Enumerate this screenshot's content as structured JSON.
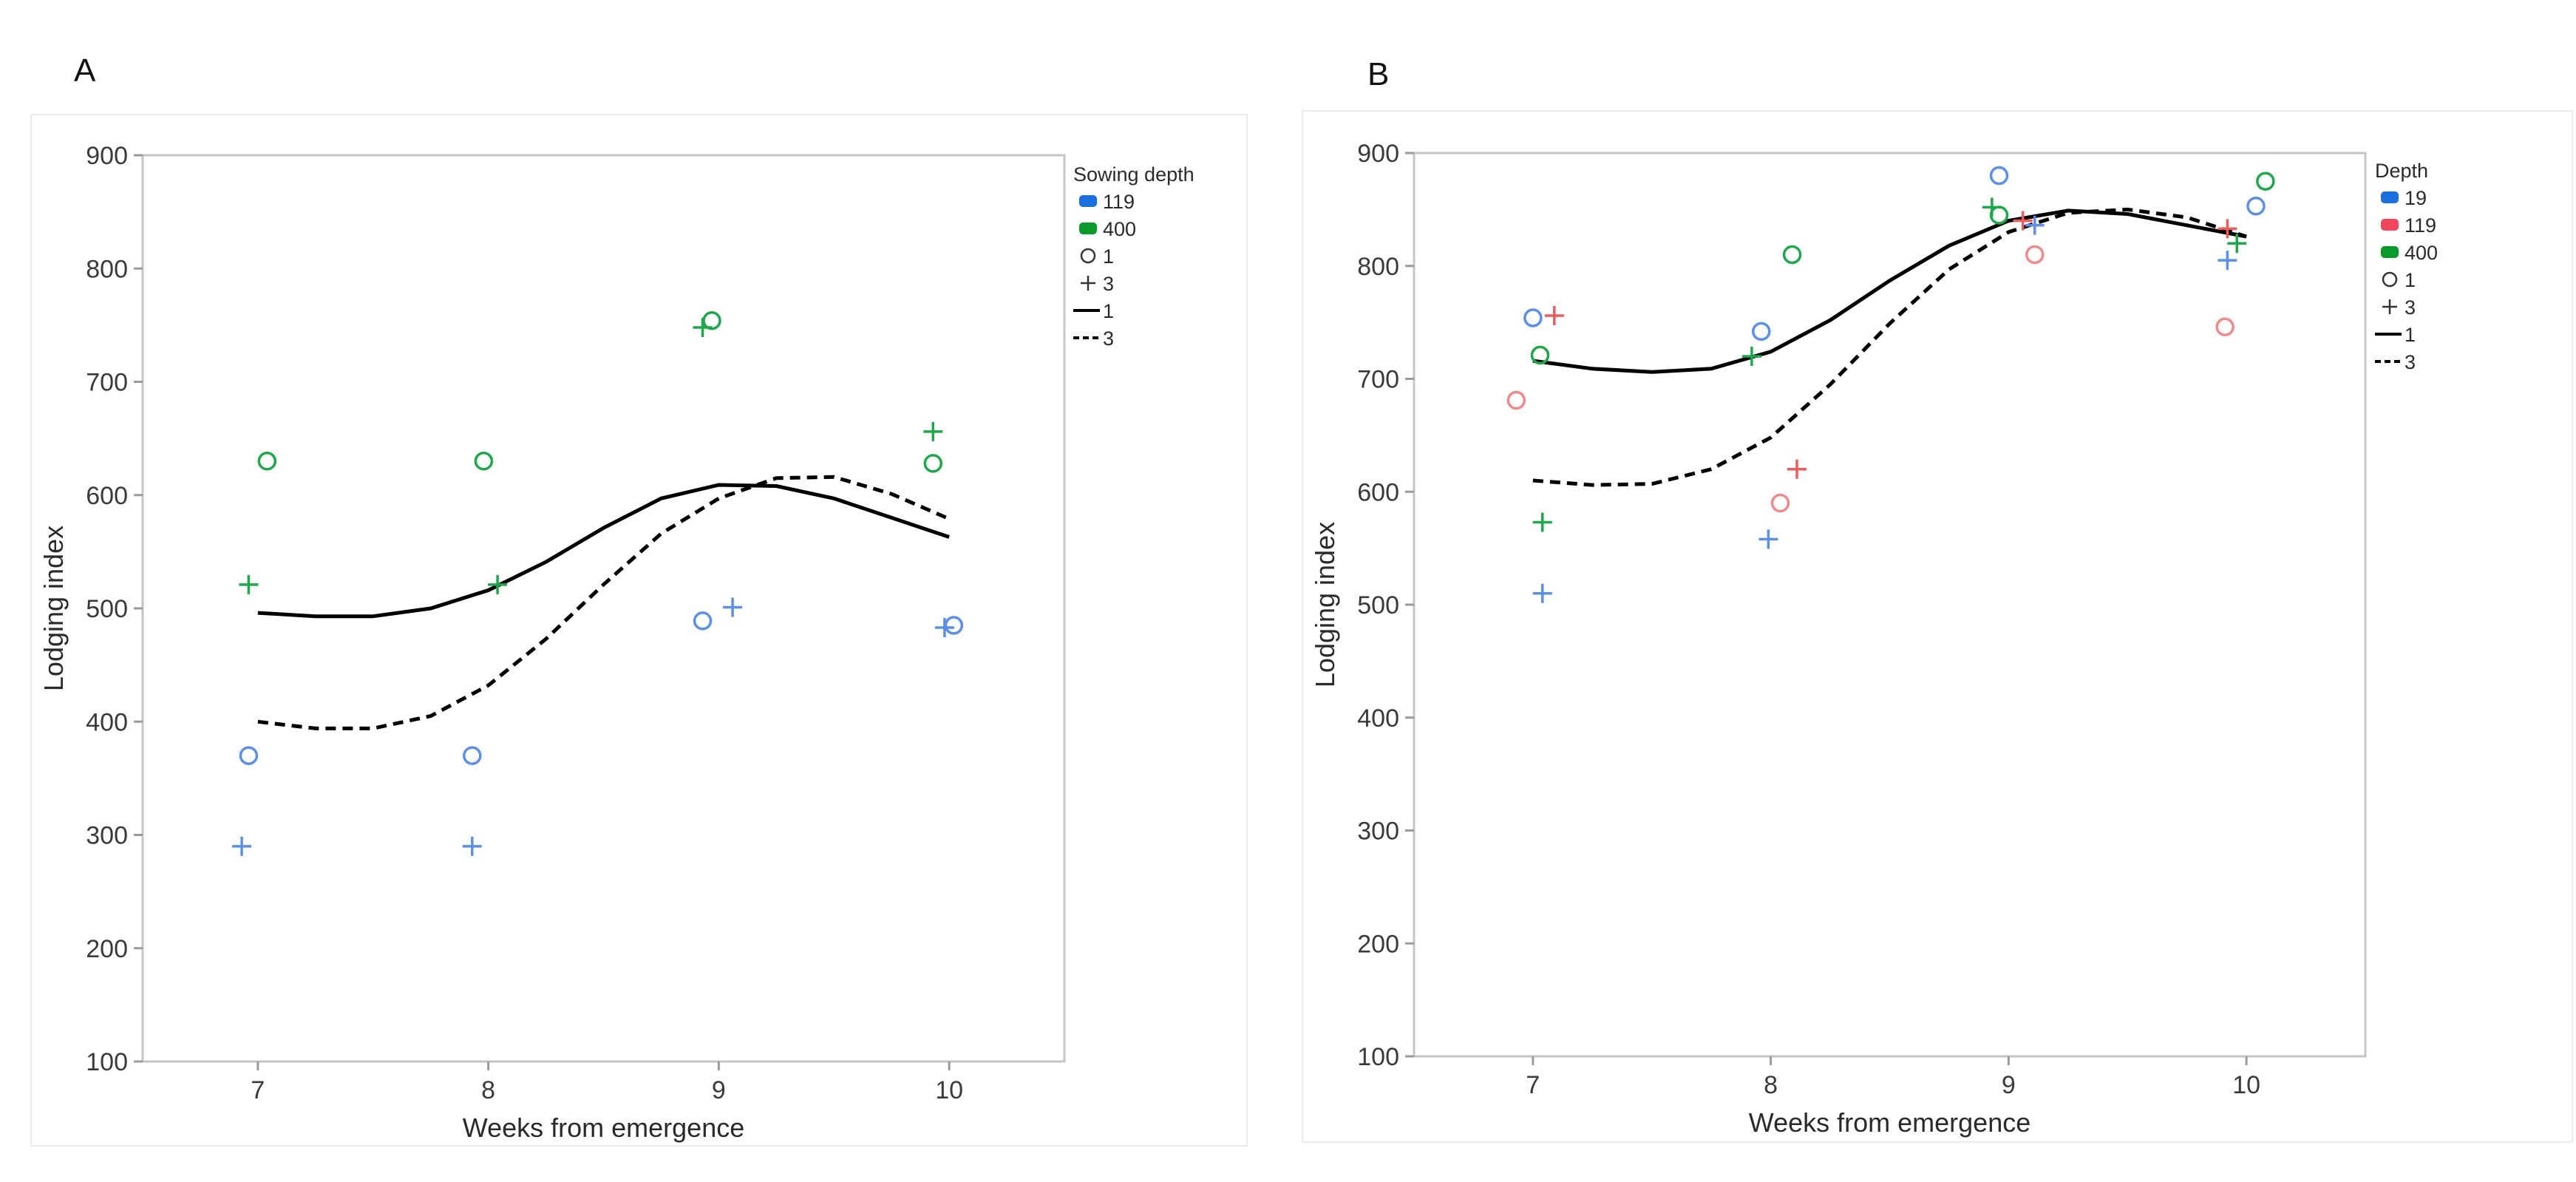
{
  "chart_data": [
    {
      "panel_label": "A",
      "type": "scatter",
      "xlabel": "Weeks from emergence",
      "ylabel": "Lodging index",
      "xlim": [
        6.5,
        10.5
      ],
      "ylim": [
        100,
        900
      ],
      "x_ticks": [
        "7",
        "8",
        "9",
        "10"
      ],
      "y_ticks": [
        "100",
        "200",
        "300",
        "400",
        "500",
        "600",
        "700",
        "800",
        "900"
      ],
      "grid": false,
      "legend": {
        "title": "Sowing depth",
        "position": "right",
        "entries": [
          {
            "label": "119",
            "kind": "color",
            "color": "#1a6fe0"
          },
          {
            "label": "400",
            "kind": "color",
            "color": "#0a9a2a"
          },
          {
            "label": "1",
            "kind": "marker",
            "marker": "circle"
          },
          {
            "label": "3",
            "kind": "marker",
            "marker": "plus"
          },
          {
            "label": "1",
            "kind": "line",
            "dash": "solid"
          },
          {
            "label": "3",
            "kind": "line",
            "dash": "dashed"
          }
        ]
      },
      "points": [
        {
          "x": 6.93,
          "y": 290,
          "marker": "plus",
          "color": "#5b8fe8"
        },
        {
          "x": 6.96,
          "y": 370,
          "marker": "circle",
          "color": "#5b8fe8"
        },
        {
          "x": 6.96,
          "y": 521,
          "marker": "plus",
          "color": "#1ea84a"
        },
        {
          "x": 7.04,
          "y": 630,
          "marker": "circle",
          "color": "#1ea84a"
        },
        {
          "x": 7.93,
          "y": 290,
          "marker": "plus",
          "color": "#5b8fe8"
        },
        {
          "x": 7.93,
          "y": 370,
          "marker": "circle",
          "color": "#5b8fe8"
        },
        {
          "x": 8.04,
          "y": 521,
          "marker": "plus",
          "color": "#1ea84a"
        },
        {
          "x": 7.98,
          "y": 630,
          "marker": "circle",
          "color": "#1ea84a"
        },
        {
          "x": 8.93,
          "y": 489,
          "marker": "circle",
          "color": "#5b8fe8"
        },
        {
          "x": 9.06,
          "y": 501,
          "marker": "plus",
          "color": "#5b8fe8"
        },
        {
          "x": 8.93,
          "y": 748,
          "marker": "plus",
          "color": "#1ea84a"
        },
        {
          "x": 8.97,
          "y": 754,
          "marker": "circle",
          "color": "#1ea84a"
        },
        {
          "x": 9.98,
          "y": 483,
          "marker": "plus",
          "color": "#5b8fe8"
        },
        {
          "x": 10.02,
          "y": 485,
          "marker": "circle",
          "color": "#5b8fe8"
        },
        {
          "x": 9.93,
          "y": 656,
          "marker": "plus",
          "color": "#1ea84a"
        },
        {
          "x": 9.93,
          "y": 628,
          "marker": "circle",
          "color": "#1ea84a"
        }
      ],
      "series": [
        {
          "name": "1",
          "dash": "solid",
          "x": [
            7.0,
            7.25,
            7.5,
            7.75,
            8.0,
            8.25,
            8.5,
            8.75,
            9.0,
            9.25,
            9.5,
            9.75,
            10.0
          ],
          "y": [
            496,
            493,
            493,
            500,
            516,
            541,
            571,
            597,
            609,
            608,
            597,
            580,
            563
          ]
        },
        {
          "name": "3",
          "dash": "dashed",
          "x": [
            7.0,
            7.25,
            7.5,
            7.75,
            8.0,
            8.25,
            8.5,
            8.75,
            9.0,
            9.25,
            9.5,
            9.75,
            10.0
          ],
          "y": [
            400,
            394,
            394,
            405,
            432,
            473,
            521,
            566,
            597,
            615,
            616,
            601,
            579
          ]
        }
      ]
    },
    {
      "panel_label": "B",
      "type": "scatter",
      "xlabel": "Weeks from emergence",
      "ylabel": "Lodging index",
      "xlim": [
        6.5,
        10.5
      ],
      "ylim": [
        100,
        900
      ],
      "x_ticks": [
        "7",
        "8",
        "9",
        "10"
      ],
      "y_ticks": [
        "100",
        "200",
        "300",
        "400",
        "500",
        "600",
        "700",
        "800",
        "900"
      ],
      "grid": false,
      "legend": {
        "title": "Depth",
        "position": "right",
        "entries": [
          {
            "label": "19",
            "kind": "color",
            "color": "#1a6fe0"
          },
          {
            "label": "119",
            "kind": "color",
            "color": "#f0455a"
          },
          {
            "label": "400",
            "kind": "color",
            "color": "#0a9a2a"
          },
          {
            "label": "1",
            "kind": "marker",
            "marker": "circle"
          },
          {
            "label": "3",
            "kind": "marker",
            "marker": "plus"
          },
          {
            "label": "1",
            "kind": "line",
            "dash": "solid"
          },
          {
            "label": "3",
            "kind": "line",
            "dash": "dashed"
          }
        ]
      },
      "points": [
        {
          "x": 7.0,
          "y": 754,
          "marker": "circle",
          "color": "#5b8fe8"
        },
        {
          "x": 7.04,
          "y": 510,
          "marker": "plus",
          "color": "#5b8fe8"
        },
        {
          "x": 6.93,
          "y": 681,
          "marker": "circle",
          "color": "#f08a8a"
        },
        {
          "x": 7.09,
          "y": 756,
          "marker": "plus",
          "color": "#f05a5a"
        },
        {
          "x": 7.03,
          "y": 721,
          "marker": "circle",
          "color": "#1ea84a"
        },
        {
          "x": 7.04,
          "y": 573,
          "marker": "plus",
          "color": "#1ea84a"
        },
        {
          "x": 7.96,
          "y": 742,
          "marker": "circle",
          "color": "#5b8fe8"
        },
        {
          "x": 7.99,
          "y": 558,
          "marker": "plus",
          "color": "#5b8fe8"
        },
        {
          "x": 8.04,
          "y": 590,
          "marker": "circle",
          "color": "#f08a8a"
        },
        {
          "x": 8.11,
          "y": 620,
          "marker": "plus",
          "color": "#f05a5a"
        },
        {
          "x": 8.09,
          "y": 810,
          "marker": "circle",
          "color": "#1ea84a"
        },
        {
          "x": 7.92,
          "y": 720,
          "marker": "plus",
          "color": "#1ea84a"
        },
        {
          "x": 8.96,
          "y": 880,
          "marker": "circle",
          "color": "#5b8fe8"
        },
        {
          "x": 9.11,
          "y": 836,
          "marker": "plus",
          "color": "#5b8fe8"
        },
        {
          "x": 9.11,
          "y": 810,
          "marker": "circle",
          "color": "#f08a8a"
        },
        {
          "x": 9.06,
          "y": 840,
          "marker": "plus",
          "color": "#f05a5a"
        },
        {
          "x": 8.96,
          "y": 845,
          "marker": "circle",
          "color": "#1ea84a"
        },
        {
          "x": 8.93,
          "y": 852,
          "marker": "plus",
          "color": "#1ea84a"
        },
        {
          "x": 10.04,
          "y": 853,
          "marker": "circle",
          "color": "#5b8fe8"
        },
        {
          "x": 9.92,
          "y": 805,
          "marker": "plus",
          "color": "#5b8fe8"
        },
        {
          "x": 9.91,
          "y": 746,
          "marker": "circle",
          "color": "#f08a8a"
        },
        {
          "x": 9.92,
          "y": 833,
          "marker": "plus",
          "color": "#f05a5a"
        },
        {
          "x": 10.08,
          "y": 875,
          "marker": "circle",
          "color": "#1ea84a"
        },
        {
          "x": 9.96,
          "y": 820,
          "marker": "plus",
          "color": "#1ea84a"
        }
      ],
      "series": [
        {
          "name": "1",
          "dash": "solid",
          "x": [
            7.0,
            7.25,
            7.5,
            7.75,
            8.0,
            8.25,
            8.5,
            8.75,
            9.0,
            9.25,
            9.5,
            9.75,
            10.0
          ],
          "y": [
            716,
            709,
            706,
            709,
            724,
            752,
            787,
            818,
            840,
            849,
            846,
            836,
            826
          ]
        },
        {
          "name": "3",
          "dash": "dashed",
          "x": [
            7.0,
            7.25,
            7.5,
            7.75,
            8.0,
            8.25,
            8.5,
            8.75,
            9.0,
            9.25,
            9.5,
            9.75,
            10.0
          ],
          "y": [
            610,
            606,
            607,
            620,
            648,
            695,
            749,
            797,
            830,
            847,
            850,
            843,
            826
          ]
        }
      ]
    }
  ]
}
